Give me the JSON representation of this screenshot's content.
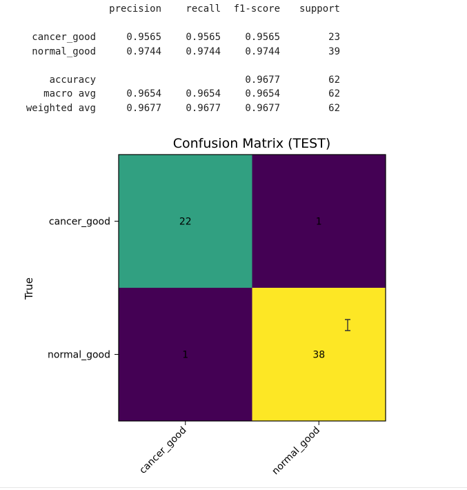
{
  "report": {
    "headers": [
      "precision",
      "recall",
      "f1-score",
      "support"
    ],
    "rows": [
      {
        "label": "cancer_good",
        "values": [
          "0.9565",
          "0.9565",
          "0.9565",
          "23"
        ]
      },
      {
        "label": "normal_good",
        "values": [
          "0.9744",
          "0.9744",
          "0.9744",
          "39"
        ]
      },
      {
        "label": "accuracy",
        "values": [
          "",
          "",
          "0.9677",
          "62"
        ]
      },
      {
        "label": "macro avg",
        "values": [
          "0.9654",
          "0.9654",
          "0.9654",
          "62"
        ]
      },
      {
        "label": "weighted avg",
        "values": [
          "0.9677",
          "0.9677",
          "0.9677",
          "62"
        ]
      }
    ]
  },
  "chart_data": {
    "type": "heatmap",
    "title": "Confusion Matrix (TEST)",
    "ylabel": "True",
    "xlabel": "",
    "x_categories": [
      "cancer_good",
      "normal_good"
    ],
    "y_categories": [
      "cancer_good",
      "normal_good"
    ],
    "values": [
      [
        22,
        1
      ],
      [
        1,
        38
      ]
    ],
    "colormap": "viridis",
    "colors": {
      "low": "#440154",
      "mid": "#21a083",
      "high": "#fde725"
    }
  },
  "cursor": {
    "icon": "text-cursor-icon"
  }
}
